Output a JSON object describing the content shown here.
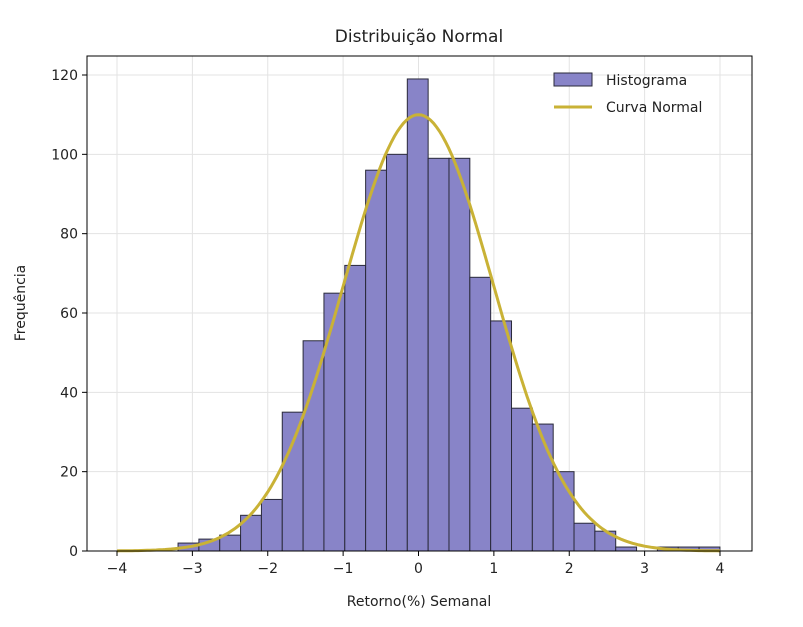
{
  "chart_data": {
    "type": "bar",
    "title": "Distribuição Normal",
    "xlabel": "Retorno(%) Semanal",
    "ylabel": "Frequência",
    "xlim": [
      -4.4,
      4.4
    ],
    "ylim": [
      0,
      125
    ],
    "xticks": [
      -4,
      -3,
      -2,
      -1,
      0,
      1,
      2,
      3,
      4
    ],
    "yticks": [
      0,
      20,
      40,
      60,
      80,
      100,
      120
    ],
    "grid": true,
    "legend_position": "top-right",
    "histogram": {
      "name": "Histograma",
      "bin_start": -3.19,
      "bin_width": 0.2765,
      "counts": [
        2,
        3,
        4,
        9,
        13,
        35,
        53,
        65,
        72,
        96,
        100,
        119,
        99,
        99,
        69,
        58,
        36,
        32,
        20,
        7,
        5,
        1,
        0,
        1,
        1,
        1
      ],
      "color": "#8884c8",
      "edge_color": "#2a2a3a"
    },
    "curve": {
      "name": "Curva Normal",
      "mean": 0,
      "std": 1,
      "x_range": [
        -4,
        4
      ],
      "peak": 110,
      "color": "#c9b236"
    }
  }
}
